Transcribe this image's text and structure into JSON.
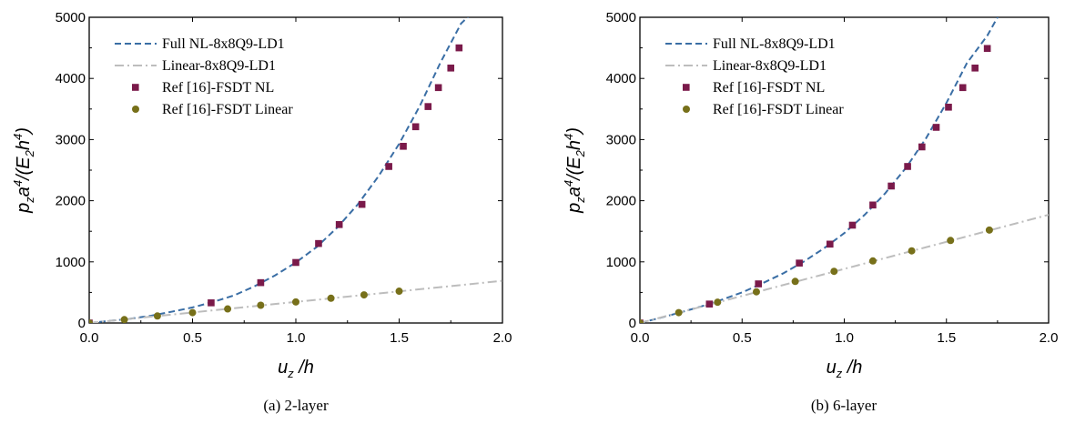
{
  "chart_data": [
    {
      "type": "line",
      "caption": "(a) 2-layer",
      "xlabel_base": "u",
      "xlabel_sub": "z",
      "xlabel_rest": " /h",
      "ylabel": "p_z a^4/(E_2 h^4)",
      "xlim": [
        0.0,
        2.0
      ],
      "ylim": [
        0,
        5000
      ],
      "xticks": [
        "0.0",
        "0.5",
        "1.0",
        "1.5",
        "2.0"
      ],
      "xtick_values": [
        0,
        0.5,
        1.0,
        1.5,
        2.0
      ],
      "yticks": [
        "0",
        "1000",
        "2000",
        "3000",
        "4000",
        "5000"
      ],
      "ytick_values": [
        0,
        1000,
        2000,
        3000,
        4000,
        5000
      ],
      "legend_position": "top-left",
      "series": [
        {
          "name": "Full NL-8x8Q9-LD1",
          "style": "dashed",
          "color": "#3a6ea5",
          "x": [
            0,
            0.1,
            0.2,
            0.3,
            0.4,
            0.5,
            0.6,
            0.7,
            0.8,
            0.9,
            1.0,
            1.1,
            1.2,
            1.3,
            1.4,
            1.5,
            1.6,
            1.7,
            1.8,
            1.85
          ],
          "y": [
            0,
            35,
            70,
            120,
            185,
            255,
            345,
            450,
            600,
            780,
            990,
            1240,
            1560,
            1940,
            2400,
            2930,
            3550,
            4260,
            4900,
            5060
          ]
        },
        {
          "name": "Linear-8x8Q9-LD1",
          "style": "dashdot",
          "color": "#bdbdbd",
          "x": [
            0,
            2.0
          ],
          "y": [
            0,
            690
          ]
        },
        {
          "name": "Ref [16]-FSDT NL",
          "style": "square",
          "color": "#7a1a4a",
          "x": [
            0.0,
            0.59,
            0.83,
            1.0,
            1.11,
            1.21,
            1.32,
            1.45,
            1.52,
            1.58,
            1.64,
            1.69,
            1.75,
            1.79
          ],
          "y": [
            0,
            330,
            660,
            990,
            1300,
            1610,
            1940,
            2560,
            2890,
            3210,
            3540,
            3850,
            4170,
            4500
          ]
        },
        {
          "name": "Ref [16]-FSDT Linear",
          "style": "circle",
          "color": "#77701a",
          "x": [
            0.0,
            0.17,
            0.33,
            0.5,
            0.67,
            0.83,
            1.0,
            1.17,
            1.33,
            1.5
          ],
          "y": [
            0,
            55,
            115,
            170,
            230,
            290,
            345,
            405,
            460,
            520
          ]
        }
      ]
    },
    {
      "type": "line",
      "caption": "(b) 6-layer",
      "xlabel_base": "u",
      "xlabel_sub": "z",
      "xlabel_rest": " /h",
      "ylabel": "p_z a^4/(E_2 h^4)",
      "xlim": [
        0.0,
        2.0
      ],
      "ylim": [
        0,
        5000
      ],
      "xticks": [
        "0.0",
        "0.5",
        "1.0",
        "1.5",
        "2.0"
      ],
      "xtick_values": [
        0,
        0.5,
        1.0,
        1.5,
        2.0
      ],
      "yticks": [
        "0",
        "1000",
        "2000",
        "3000",
        "4000",
        "5000"
      ],
      "ytick_values": [
        0,
        1000,
        2000,
        3000,
        4000,
        5000
      ],
      "legend_position": "top-left",
      "series": [
        {
          "name": "Full NL-8x8Q9-LD1",
          "style": "dashed",
          "color": "#3a6ea5",
          "x": [
            0,
            0.1,
            0.2,
            0.3,
            0.4,
            0.5,
            0.6,
            0.7,
            0.8,
            0.9,
            1.0,
            1.1,
            1.2,
            1.3,
            1.4,
            1.5,
            1.6,
            1.7,
            1.76
          ],
          "y": [
            0,
            85,
            175,
            270,
            380,
            500,
            650,
            810,
            1000,
            1220,
            1470,
            1770,
            2120,
            2530,
            3020,
            3600,
            4250,
            4700,
            5060
          ]
        },
        {
          "name": "Linear-8x8Q9-LD1",
          "style": "dashdot",
          "color": "#bdbdbd",
          "x": [
            0,
            2.0
          ],
          "y": [
            0,
            1770
          ]
        },
        {
          "name": "Ref [16]-FSDT NL",
          "style": "square",
          "color": "#7a1a4a",
          "x": [
            0.0,
            0.34,
            0.58,
            0.78,
            0.93,
            1.04,
            1.14,
            1.23,
            1.31,
            1.38,
            1.45,
            1.51,
            1.58,
            1.64,
            1.7
          ],
          "y": [
            0,
            310,
            640,
            980,
            1290,
            1600,
            1930,
            2240,
            2560,
            2880,
            3200,
            3530,
            3850,
            4170,
            4490
          ]
        },
        {
          "name": "Ref [16]-FSDT Linear",
          "style": "circle",
          "color": "#77701a",
          "x": [
            0.0,
            0.19,
            0.38,
            0.57,
            0.76,
            0.95,
            1.14,
            1.33,
            1.52,
            1.71
          ],
          "y": [
            0,
            170,
            340,
            510,
            680,
            845,
            1015,
            1180,
            1350,
            1520
          ]
        }
      ]
    }
  ]
}
